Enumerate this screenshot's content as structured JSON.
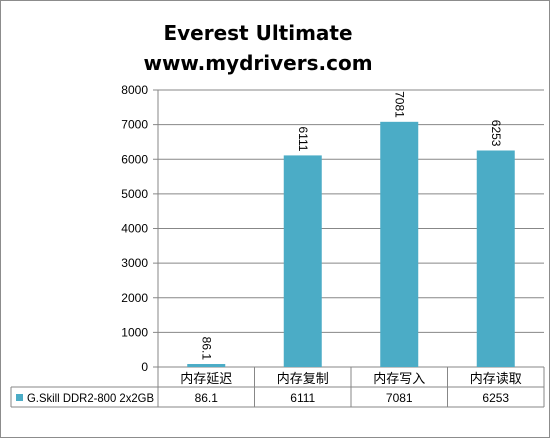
{
  "chart_data": {
    "type": "bar",
    "title": [
      "Everest Ultimate",
      "www.mydrivers.com"
    ],
    "categories": [
      "内存延迟",
      "内存复制",
      "内存写入",
      "内存读取"
    ],
    "series": [
      {
        "name": "G.Skill DDR2-800 2x2GB",
        "values": [
          86.1,
          6111,
          7081,
          6253
        ],
        "value_labels": [
          "86.1",
          "6111",
          "7081",
          "6253"
        ],
        "color": "#4bacc6"
      }
    ],
    "ylim": [
      0,
      8000
    ],
    "yticks": [
      0,
      1000,
      2000,
      3000,
      4000,
      5000,
      6000,
      7000,
      8000
    ],
    "grid": true,
    "data_table": true,
    "legend_key_color": "#4bacc6"
  }
}
